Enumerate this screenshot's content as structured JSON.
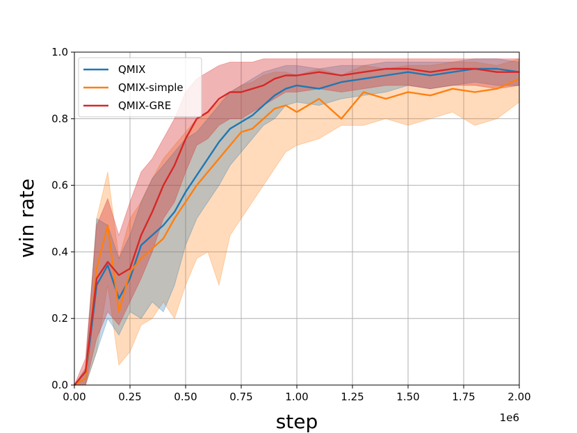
{
  "chart_data": {
    "type": "line",
    "title": "",
    "xlabel": "step",
    "ylabel": "win rate",
    "x_offset_text": "1e6",
    "xlim": [
      0,
      2.0
    ],
    "ylim": [
      0,
      1.0
    ],
    "xticks": [
      "0.00",
      "0.25",
      "0.50",
      "0.75",
      "1.00",
      "1.25",
      "1.50",
      "1.75",
      "2.00"
    ],
    "yticks": [
      "0.0",
      "0.2",
      "0.4",
      "0.6",
      "0.8",
      "1.0"
    ],
    "grid": true,
    "legend_position": "top-left",
    "x": [
      0.0,
      0.05,
      0.1,
      0.15,
      0.2,
      0.25,
      0.3,
      0.35,
      0.4,
      0.45,
      0.5,
      0.55,
      0.6,
      0.65,
      0.7,
      0.75,
      0.8,
      0.85,
      0.9,
      0.95,
      1.0,
      1.1,
      1.2,
      1.3,
      1.4,
      1.5,
      1.6,
      1.7,
      1.8,
      1.9,
      2.0
    ],
    "series": [
      {
        "name": "QMIX",
        "color": "#1f77b4",
        "values": [
          0.0,
          0.02,
          0.3,
          0.36,
          0.26,
          0.32,
          0.42,
          0.45,
          0.48,
          0.52,
          0.58,
          0.63,
          0.68,
          0.73,
          0.77,
          0.79,
          0.81,
          0.84,
          0.87,
          0.89,
          0.9,
          0.89,
          0.91,
          0.92,
          0.93,
          0.94,
          0.93,
          0.94,
          0.95,
          0.95,
          0.94
        ],
        "lower": [
          0.0,
          0.0,
          0.1,
          0.2,
          0.15,
          0.22,
          0.2,
          0.25,
          0.22,
          0.3,
          0.42,
          0.5,
          0.55,
          0.6,
          0.66,
          0.7,
          0.74,
          0.78,
          0.8,
          0.84,
          0.85,
          0.84,
          0.86,
          0.87,
          0.88,
          0.9,
          0.89,
          0.9,
          0.91,
          0.9,
          0.9
        ],
        "upper": [
          0.0,
          0.05,
          0.5,
          0.48,
          0.38,
          0.45,
          0.55,
          0.62,
          0.66,
          0.7,
          0.74,
          0.76,
          0.8,
          0.84,
          0.88,
          0.9,
          0.92,
          0.94,
          0.95,
          0.96,
          0.96,
          0.95,
          0.96,
          0.96,
          0.97,
          0.97,
          0.97,
          0.97,
          0.98,
          0.98,
          0.97
        ]
      },
      {
        "name": "QMIX-simple",
        "color": "#ff7f0e",
        "values": [
          0.0,
          0.02,
          0.35,
          0.48,
          0.22,
          0.34,
          0.38,
          0.41,
          0.44,
          0.5,
          0.55,
          0.6,
          0.64,
          0.68,
          0.72,
          0.76,
          0.77,
          0.8,
          0.83,
          0.84,
          0.82,
          0.86,
          0.8,
          0.88,
          0.86,
          0.88,
          0.87,
          0.89,
          0.88,
          0.89,
          0.92
        ],
        "lower": [
          0.0,
          0.0,
          0.1,
          0.3,
          0.06,
          0.1,
          0.18,
          0.2,
          0.25,
          0.2,
          0.3,
          0.38,
          0.4,
          0.3,
          0.45,
          0.5,
          0.55,
          0.6,
          0.65,
          0.7,
          0.72,
          0.74,
          0.78,
          0.78,
          0.8,
          0.78,
          0.8,
          0.82,
          0.78,
          0.8,
          0.85
        ],
        "upper": [
          0.0,
          0.05,
          0.5,
          0.64,
          0.38,
          0.5,
          0.55,
          0.62,
          0.68,
          0.72,
          0.76,
          0.8,
          0.82,
          0.85,
          0.88,
          0.9,
          0.91,
          0.93,
          0.94,
          0.94,
          0.93,
          0.95,
          0.93,
          0.96,
          0.95,
          0.96,
          0.96,
          0.97,
          0.97,
          0.96,
          0.98
        ]
      },
      {
        "name": "QMIX-GRE",
        "color": "#d62728",
        "values": [
          0.0,
          0.04,
          0.32,
          0.37,
          0.33,
          0.35,
          0.45,
          0.52,
          0.6,
          0.66,
          0.74,
          0.8,
          0.82,
          0.86,
          0.88,
          0.88,
          0.89,
          0.9,
          0.92,
          0.93,
          0.93,
          0.94,
          0.93,
          0.94,
          0.95,
          0.95,
          0.94,
          0.95,
          0.95,
          0.94,
          0.94
        ],
        "lower": [
          0.0,
          0.0,
          0.14,
          0.22,
          0.18,
          0.25,
          0.32,
          0.4,
          0.5,
          0.55,
          0.64,
          0.72,
          0.74,
          0.78,
          0.8,
          0.8,
          0.82,
          0.84,
          0.86,
          0.88,
          0.88,
          0.89,
          0.88,
          0.89,
          0.9,
          0.9,
          0.89,
          0.9,
          0.9,
          0.89,
          0.9
        ],
        "upper": [
          0.0,
          0.08,
          0.48,
          0.56,
          0.45,
          0.55,
          0.64,
          0.68,
          0.74,
          0.8,
          0.88,
          0.92,
          0.94,
          0.96,
          0.97,
          0.97,
          0.97,
          0.98,
          0.98,
          0.98,
          0.98,
          0.98,
          0.98,
          0.98,
          0.98,
          0.98,
          0.98,
          0.98,
          0.98,
          0.98,
          0.98
        ]
      }
    ]
  }
}
